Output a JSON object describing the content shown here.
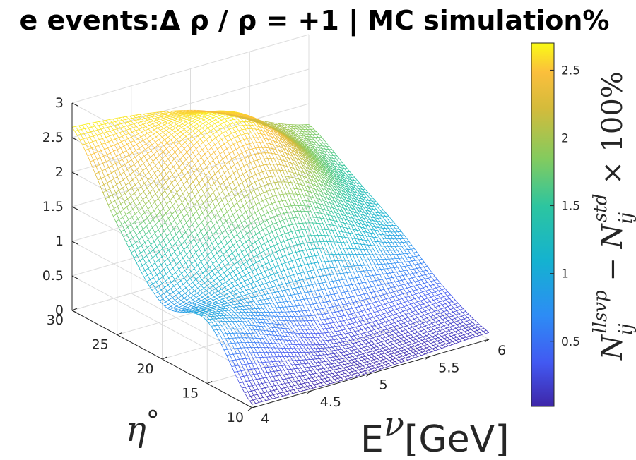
{
  "chart_data": {
    "type": "surface",
    "title": "e events:Δ ρ / ρ = +1 | MC simulation%",
    "xlabel": "Eν[GeV]",
    "ylabel": "η°",
    "zlabel": "",
    "xlim": [
      4,
      6
    ],
    "ylim": [
      10,
      30
    ],
    "zlim": [
      0,
      3
    ],
    "x_ticks": [
      "4",
      "4.5",
      "5",
      "5.5",
      "6"
    ],
    "y_ticks": [
      "10",
      "15",
      "20",
      "25",
      "30"
    ],
    "z_ticks": [
      "0",
      "0.5",
      "1",
      "1.5",
      "2",
      "2.5",
      "3"
    ],
    "grid": true,
    "colormap": "parula",
    "colorbar": {
      "range": [
        0.02,
        2.7
      ],
      "ticks": [
        "0.5",
        "1",
        "1.5",
        "2",
        "2.5"
      ],
      "label": "N_ij^llsvp − N_ij^std × 100%"
    },
    "surface_samples": [
      {
        "x": 4.0,
        "y": 30,
        "z": 2.65
      },
      {
        "x": 4.0,
        "y": 25,
        "z": 1.6
      },
      {
        "x": 4.0,
        "y": 20,
        "z": 0.8
      },
      {
        "x": 4.0,
        "y": 15,
        "z": 0.9
      },
      {
        "x": 4.0,
        "y": 10,
        "z": 0.05
      },
      {
        "x": 5.0,
        "y": 30,
        "z": 2.4
      },
      {
        "x": 5.0,
        "y": 25,
        "z": 2.6
      },
      {
        "x": 5.0,
        "y": 20,
        "z": 1.6
      },
      {
        "x": 5.0,
        "y": 15,
        "z": 0.4
      },
      {
        "x": 5.0,
        "y": 10,
        "z": 0.02
      },
      {
        "x": 6.0,
        "y": 30,
        "z": 1.7
      },
      {
        "x": 6.0,
        "y": 25,
        "z": 1.3
      },
      {
        "x": 6.0,
        "y": 20,
        "z": 0.9
      },
      {
        "x": 6.0,
        "y": 15,
        "z": 0.4
      },
      {
        "x": 6.0,
        "y": 10,
        "z": 0.1
      }
    ]
  },
  "colors": {
    "colormap_stops": [
      "#3e26a8",
      "#4259f2",
      "#2d8cf5",
      "#14b2d0",
      "#2cc5a0",
      "#82cb5f",
      "#d4bb3b",
      "#fbbf3c",
      "#f9fb15"
    ],
    "axis": "#262626",
    "grid": "#dcdcdc"
  }
}
